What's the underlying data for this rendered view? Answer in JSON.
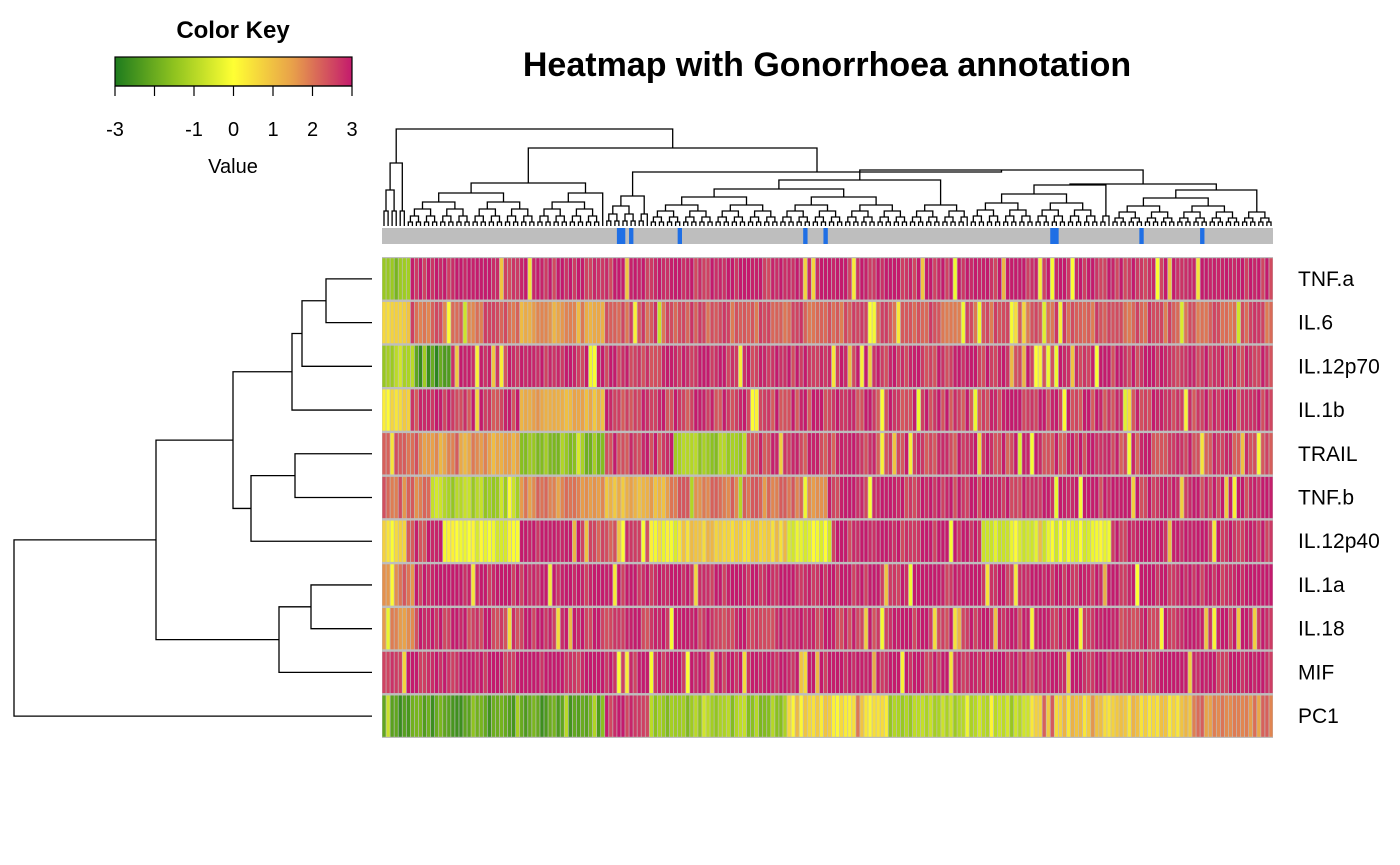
{
  "chart_data": {
    "type": "heatmap",
    "title": "Heatmap with Gonorrhoea annotation",
    "color_key": {
      "title": "Color Key",
      "label": "Value",
      "ticks": [
        "-3",
        "-1",
        "0",
        "1",
        "2",
        "3"
      ],
      "tick_values": [
        -3,
        -1,
        0,
        1,
        2,
        3
      ],
      "range": [
        -3,
        3
      ],
      "colors": [
        "#1e7b1e",
        "#8fc31f",
        "#ffff33",
        "#e8a04a",
        "#c41a6d"
      ]
    },
    "rows": [
      "TNF.a",
      "IL.6",
      "IL.12p70",
      "IL.1b",
      "TRAIL",
      "TNF.b",
      "IL.12p40",
      "IL.1a",
      "IL.18",
      "MIF",
      "PC1"
    ],
    "n_columns": 220,
    "annotation": {
      "name": "Gonorrhoea",
      "colors": {
        "negative": "#bebebe",
        "positive": "#1f6fe5"
      },
      "positive_columns": [
        58,
        59,
        61,
        73,
        104,
        109,
        165,
        166,
        187,
        202
      ]
    },
    "row_dendrogram": true,
    "column_dendrogram": true,
    "row_profiles": [
      {
        "row": "TNF.a",
        "segments": [
          [
            0,
            7,
            -1.5
          ],
          [
            7,
            220,
            2.9
          ]
        ]
      },
      {
        "row": "IL.6",
        "segments": [
          [
            0,
            7,
            0.8
          ],
          [
            7,
            34,
            2.2
          ],
          [
            34,
            55,
            1.5
          ],
          [
            55,
            220,
            2.3
          ]
        ]
      },
      {
        "row": "IL.12p70",
        "segments": [
          [
            0,
            8,
            -1.0
          ],
          [
            8,
            17,
            -2.4
          ],
          [
            17,
            220,
            2.8
          ]
        ]
      },
      {
        "row": "IL.1b",
        "segments": [
          [
            0,
            7,
            0.5
          ],
          [
            7,
            34,
            2.7
          ],
          [
            34,
            55,
            1.2
          ],
          [
            55,
            220,
            2.7
          ]
        ]
      },
      {
        "row": "TRAIL",
        "segments": [
          [
            0,
            9,
            2.2
          ],
          [
            9,
            34,
            1.5
          ],
          [
            34,
            55,
            -1.5
          ],
          [
            55,
            72,
            2.7
          ],
          [
            72,
            90,
            -1.2
          ],
          [
            90,
            220,
            2.6
          ]
        ]
      },
      {
        "row": "TNF.b",
        "segments": [
          [
            0,
            12,
            2.0
          ],
          [
            12,
            34,
            -1.0
          ],
          [
            34,
            55,
            1.8
          ],
          [
            55,
            70,
            1.2
          ],
          [
            70,
            110,
            1.9
          ],
          [
            110,
            220,
            2.8
          ]
        ]
      },
      {
        "row": "IL.12p40",
        "segments": [
          [
            0,
            6,
            0.4
          ],
          [
            6,
            15,
            2.6
          ],
          [
            15,
            34,
            -0.2
          ],
          [
            34,
            48,
            2.9
          ],
          [
            48,
            67,
            2.6
          ],
          [
            67,
            73,
            -0.2
          ],
          [
            73,
            100,
            0.8
          ],
          [
            100,
            111,
            -0.2
          ],
          [
            111,
            148,
            2.9
          ],
          [
            148,
            180,
            -0.3
          ],
          [
            180,
            220,
            2.9
          ]
        ]
      },
      {
        "row": "IL.1a",
        "segments": [
          [
            0,
            8,
            2.0
          ],
          [
            8,
            220,
            2.95
          ]
        ]
      },
      {
        "row": "IL.18",
        "segments": [
          [
            0,
            8,
            1.8
          ],
          [
            8,
            220,
            2.8
          ]
        ]
      },
      {
        "row": "MIF",
        "segments": [
          [
            0,
            220,
            2.95
          ]
        ]
      },
      {
        "row": "PC1",
        "segments": [
          [
            0,
            55,
            -2.2
          ],
          [
            55,
            66,
            2.9
          ],
          [
            66,
            100,
            -1.3
          ],
          [
            100,
            125,
            0.5
          ],
          [
            125,
            160,
            -1.0
          ],
          [
            160,
            200,
            0.8
          ],
          [
            200,
            220,
            1.8
          ]
        ]
      }
    ]
  }
}
